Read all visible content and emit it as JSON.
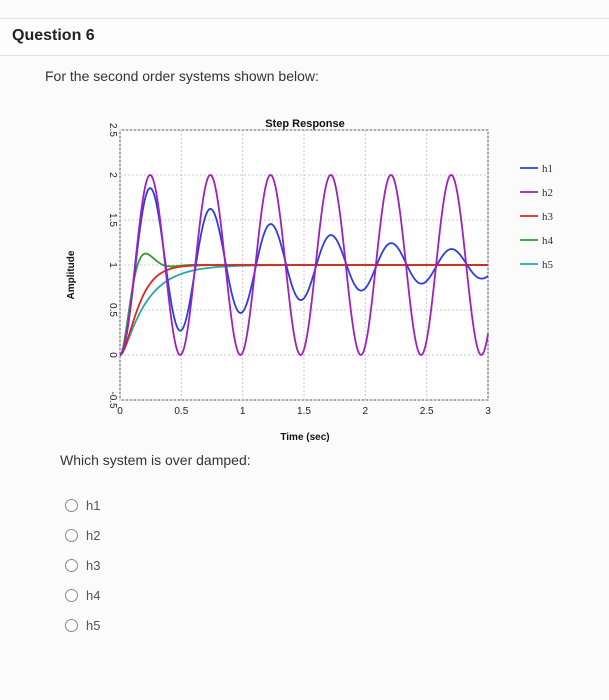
{
  "header": {
    "title": "Question 6"
  },
  "prompt": "For the second order systems shown below:",
  "question": "Which system is over damped:",
  "options": [
    {
      "label": "h1"
    },
    {
      "label": "h2"
    },
    {
      "label": "h3"
    },
    {
      "label": "h4"
    },
    {
      "label": "h5"
    }
  ],
  "chart_data": {
    "type": "line",
    "title": "Step Response",
    "xlabel": "Time (sec)",
    "ylabel": "Amplitude",
    "xlim": [
      0,
      3
    ],
    "ylim": [
      -0.5,
      2.5
    ],
    "x_ticks": [
      "0",
      "0.5",
      "1",
      "1.5",
      "2",
      "2.5",
      "3"
    ],
    "y_ticks": [
      "-0.5",
      "0",
      "0.5",
      "1",
      "1.5",
      "2",
      "2.5"
    ],
    "grid": true,
    "legend_position": "right",
    "series": [
      {
        "name": "h1",
        "color": "#2b3fe0",
        "kind": "decaying_osc",
        "omega_n": 12.8,
        "zeta": 0.05
      },
      {
        "name": "h2",
        "color": "#a11fbf",
        "kind": "undamped_osc",
        "omega_n": 12.8,
        "zeta": 0
      },
      {
        "name": "h3",
        "color": "#e0251b",
        "kind": "critical",
        "omega_n": 12.0
      },
      {
        "name": "h4",
        "color": "#2f9e2f",
        "kind": "underdamped",
        "omega_n": 18.0,
        "zeta": 0.55
      },
      {
        "name": "h5",
        "color": "#28a8a4",
        "kind": "overdamped",
        "p1": 5.0,
        "p2": 30.0
      }
    ]
  }
}
